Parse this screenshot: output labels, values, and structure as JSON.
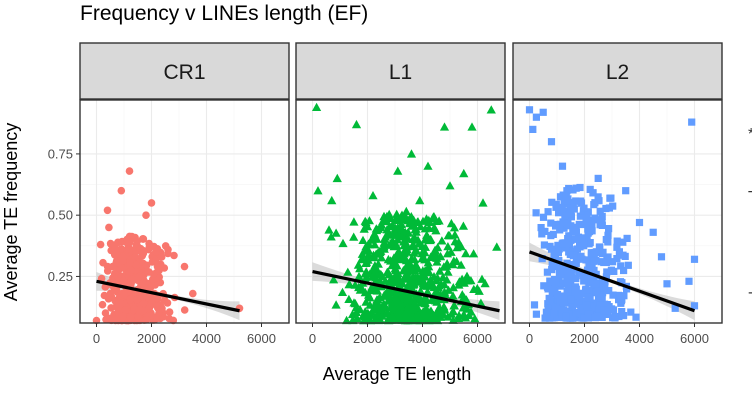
{
  "chart_data": {
    "type": "scatter",
    "title": "Frequency v LINEs length (EF)",
    "xlabel": "Average TE length",
    "ylabel": "Average TE frequency",
    "x_ticks": [
      "0",
      "2000",
      "4000",
      "6000"
    ],
    "y_ticks": [
      "0.25",
      "0.50",
      "0.75"
    ],
    "xlim": [
      -600,
      7000
    ],
    "ylim": [
      0.06,
      0.97
    ],
    "grid": true,
    "facets": [
      {
        "name": "CR1",
        "color": "#F8766D",
        "marker": "circle",
        "cluster": {
          "n": 450,
          "x_range": [
            100,
            3400
          ],
          "x_center": 1300,
          "y_range": [
            0.07,
            0.42
          ]
        },
        "points": [
          [
            400,
            0.52
          ],
          [
            1200,
            0.68
          ],
          [
            900,
            0.6
          ],
          [
            450,
            0.45
          ],
          [
            1800,
            0.5
          ],
          [
            5200,
            0.12
          ],
          [
            3500,
            0.18
          ],
          [
            150,
            0.38
          ],
          [
            3200,
            0.29
          ],
          [
            2600,
            0.36
          ],
          [
            0,
            0.07
          ],
          [
            2000,
            0.55
          ]
        ],
        "trend": {
          "x": [
            0,
            5200
          ],
          "y": [
            0.23,
            0.11
          ]
        }
      },
      {
        "name": "L1",
        "color": "#00BA38",
        "marker": "triangle",
        "cluster": {
          "n": 650,
          "x_range": [
            300,
            6800
          ],
          "x_center": 3400,
          "y_range": [
            0.07,
            0.52
          ]
        },
        "points": [
          [
            1600,
            0.87
          ],
          [
            4800,
            0.86
          ],
          [
            5800,
            0.86
          ],
          [
            6500,
            0.93
          ],
          [
            3600,
            0.75
          ],
          [
            700,
            0.56
          ],
          [
            5500,
            0.67
          ],
          [
            200,
            0.6
          ],
          [
            900,
            0.65
          ],
          [
            4200,
            0.7
          ],
          [
            3100,
            0.68
          ],
          [
            6200,
            0.55
          ],
          [
            5000,
            0.62
          ],
          [
            2200,
            0.58
          ],
          [
            150,
            0.94
          ],
          [
            6700,
            0.37
          ],
          [
            600,
            0.44
          ],
          [
            3900,
            0.56
          ]
        ],
        "trend": {
          "x": [
            0,
            6800
          ],
          "y": [
            0.27,
            0.11
          ]
        }
      },
      {
        "name": "L2",
        "color": "#619CFF",
        "marker": "square",
        "cluster": {
          "n": 480,
          "x_range": [
            0,
            4200
          ],
          "x_center": 1700,
          "y_range": [
            0.08,
            0.63
          ]
        },
        "points": [
          [
            0,
            0.93
          ],
          [
            500,
            0.92
          ],
          [
            250,
            0.9
          ],
          [
            5900,
            0.88
          ],
          [
            120,
            0.85
          ],
          [
            800,
            0.8
          ],
          [
            4500,
            0.43
          ],
          [
            6000,
            0.32
          ],
          [
            5800,
            0.23
          ],
          [
            5000,
            0.22
          ],
          [
            4800,
            0.33
          ],
          [
            3500,
            0.6
          ],
          [
            1200,
            0.7
          ],
          [
            6000,
            0.13
          ],
          [
            5300,
            0.12
          ],
          [
            4000,
            0.47
          ],
          [
            2500,
            0.65
          ]
        ],
        "trend": {
          "x": [
            0,
            6000
          ],
          "y": [
            0.35,
            0.11
          ]
        }
      }
    ]
  }
}
